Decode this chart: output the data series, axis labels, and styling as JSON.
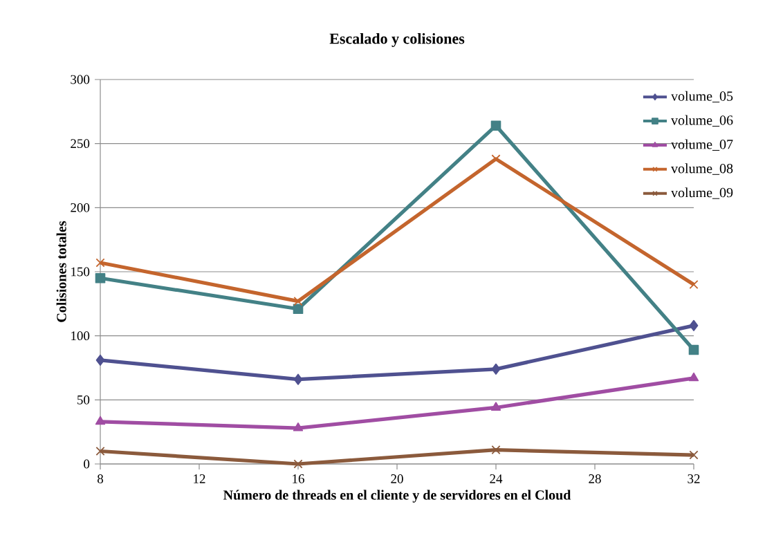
{
  "chart_data": {
    "type": "line",
    "title": "Escalado y colisiones",
    "xlabel": "Número de threads en el cliente y de servidores en el Cloud",
    "ylabel": "Colisiones totales",
    "x": [
      8,
      16,
      24,
      32
    ],
    "xlim": [
      8,
      32
    ],
    "xticks": [
      8,
      12,
      16,
      20,
      24,
      28,
      32
    ],
    "ylim": [
      0,
      300
    ],
    "yticks": [
      0,
      50,
      100,
      150,
      200,
      250,
      300
    ],
    "grid": "y",
    "legend": "top right",
    "line_style": "solid",
    "series": [
      {
        "name": "volume_05",
        "color": "#4f5190",
        "marker": "diamond",
        "values": [
          81,
          66,
          74,
          108
        ]
      },
      {
        "name": "volume_06",
        "color": "#438186",
        "marker": "square",
        "values": [
          145,
          121,
          264,
          89
        ]
      },
      {
        "name": "volume_07",
        "color": "#a04da3",
        "marker": "triangle",
        "values": [
          33,
          28,
          44,
          67
        ]
      },
      {
        "name": "volume_08",
        "color": "#c4652d",
        "marker": "cross",
        "values": [
          157,
          127,
          238,
          140
        ]
      },
      {
        "name": "volume_09",
        "color": "#8b5a3c",
        "marker": "cross",
        "values": [
          10,
          0,
          11,
          7
        ]
      }
    ]
  }
}
